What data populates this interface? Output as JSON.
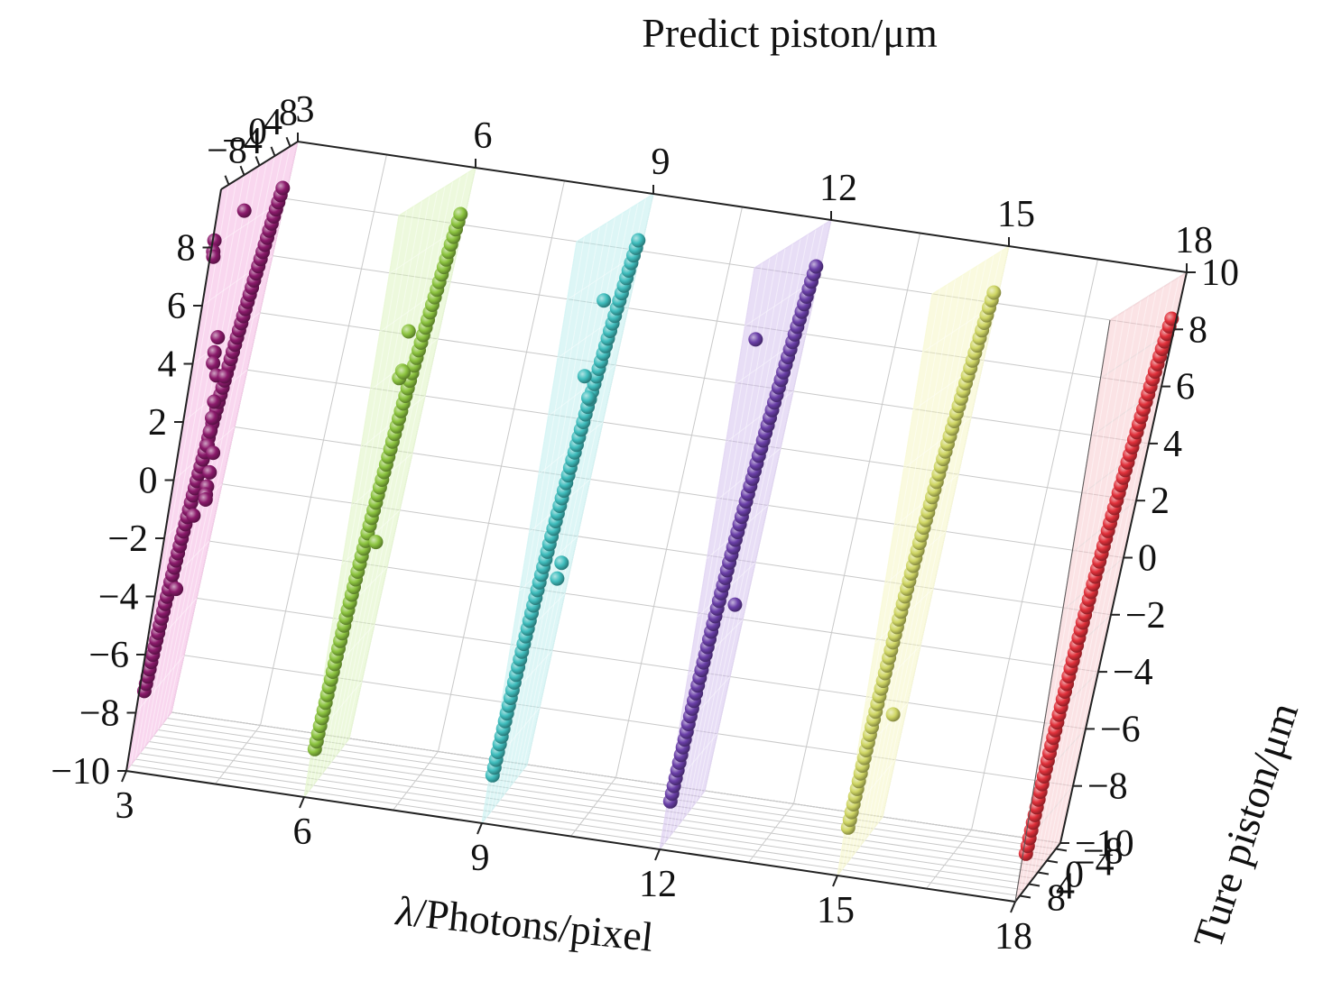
{
  "chart_data": {
    "type": "scatter",
    "title": "",
    "axes": {
      "lambda": {
        "label_symbol": "λ",
        "label_rest": "/Photons/pixel",
        "ticks": [
          "3",
          "6",
          "9",
          "12",
          "15",
          "18"
        ],
        "range": [
          3,
          18
        ]
      },
      "predict": {
        "label": "Predict piston/μm",
        "ticks_top_left": [
          "−8",
          "−4",
          "0",
          "4",
          "8"
        ],
        "ticks_top": [
          "3",
          "6",
          "9",
          "12",
          "15",
          "18"
        ],
        "range": [
          -10,
          10
        ]
      },
      "true": {
        "label": "Ture piston/μm",
        "ticks_depth": [
          "8",
          "4",
          "0",
          "−4",
          "−8"
        ],
        "range": [
          -10,
          10
        ]
      },
      "vertical_left_ticks": [
        "8",
        "6",
        "4",
        "2",
        "0",
        "−2",
        "−4",
        "−6",
        "−8",
        "−10"
      ],
      "vertical_right_ticks": [
        "10",
        "8",
        "6",
        "4",
        "2",
        "0",
        "−2",
        "−4",
        "−6",
        "−8",
        "−10"
      ]
    },
    "grid": true,
    "series": [
      {
        "lambda": 3,
        "color": "#8b1a6b",
        "plane_color": "#f2a6dc",
        "line": {
          "true_range": [
            -7.5,
            8.5
          ],
          "slope": 1.0
        },
        "outliers": [
          {
            "true": -9.5,
            "pred": 8.2
          },
          {
            "true": -9.3,
            "pred": 7.8
          },
          {
            "true": -9.0,
            "pred": 7.6
          },
          {
            "true": -2.0,
            "pred": 8.6
          },
          {
            "true": -3.0,
            "pred": 4.3
          },
          {
            "true": -3.2,
            "pred": 3.8
          },
          {
            "true": -3.0,
            "pred": 3.4
          },
          {
            "true": -1.0,
            "pred": 2.8
          },
          {
            "true": 0.0,
            "pred": 1.8
          },
          {
            "true": 0.4,
            "pred": 1.2
          },
          {
            "true": 0.6,
            "pred": 0.7
          },
          {
            "true": 0.8,
            "pred": 0.2
          },
          {
            "true": 2.0,
            "pred": 2.5
          },
          {
            "true": 3.5,
            "pred": -0.3
          },
          {
            "true": 3.7,
            "pred": -1.0
          },
          {
            "true": 3.8,
            "pred": -1.5
          },
          {
            "true": 4.0,
            "pred": -1.8
          },
          {
            "true": 4.3,
            "pred": -2.0
          },
          {
            "true": 0.5,
            "pred": -2.2
          },
          {
            "true": -1.0,
            "pred": -4.6
          }
        ]
      },
      {
        "lambda": 6,
        "color": "#8cc43f",
        "plane_color": "#d7f2b4",
        "line": {
          "true_range": [
            -8.5,
            8.5
          ],
          "slope": 1.0
        },
        "outliers": [
          {
            "true": -0.6,
            "pred": 5.2
          },
          {
            "true": -0.8,
            "pred": 3.6
          },
          {
            "true": -0.2,
            "pred": 3.8
          },
          {
            "true": 0.3,
            "pred": 3.7
          },
          {
            "true": 2.5,
            "pred": -2.4
          }
        ]
      },
      {
        "lambda": 9,
        "color": "#3fbdbd",
        "plane_color": "#b3ecec",
        "line": {
          "true_range": [
            -8.5,
            8.5
          ],
          "slope": 1.0
        },
        "outliers": [
          {
            "true": 1.5,
            "pred": 7.0
          },
          {
            "true": 0.0,
            "pred": 4.5
          },
          {
            "true": 2.8,
            "pred": 3.5
          },
          {
            "true": 5.5,
            "pred": -2.5
          },
          {
            "true": 5.0,
            "pred": -3.0
          }
        ]
      },
      {
        "lambda": 12,
        "color": "#6a3fa8",
        "plane_color": "#cbb6ea",
        "line": {
          "true_range": [
            -8.5,
            8.5
          ],
          "slope": 1.0
        },
        "outliers": [
          {
            "true": -6.0,
            "pred": 7.2
          },
          {
            "true": 5.0,
            "pred": -3.0
          }
        ]
      },
      {
        "lambda": 15,
        "color": "#cfd664",
        "plane_color": "#f4f5b8",
        "line": {
          "true_range": [
            -8.5,
            8.5
          ],
          "slope": 1.0
        },
        "outliers": [
          {
            "true": 3.8,
            "pred": -5.8
          }
        ]
      },
      {
        "lambda": 18,
        "color": "#e0303a",
        "plane_color": "#f7c0c6",
        "line": {
          "true_range": [
            -8.5,
            8.5
          ],
          "slope": 1.0
        },
        "outliers": []
      }
    ]
  }
}
